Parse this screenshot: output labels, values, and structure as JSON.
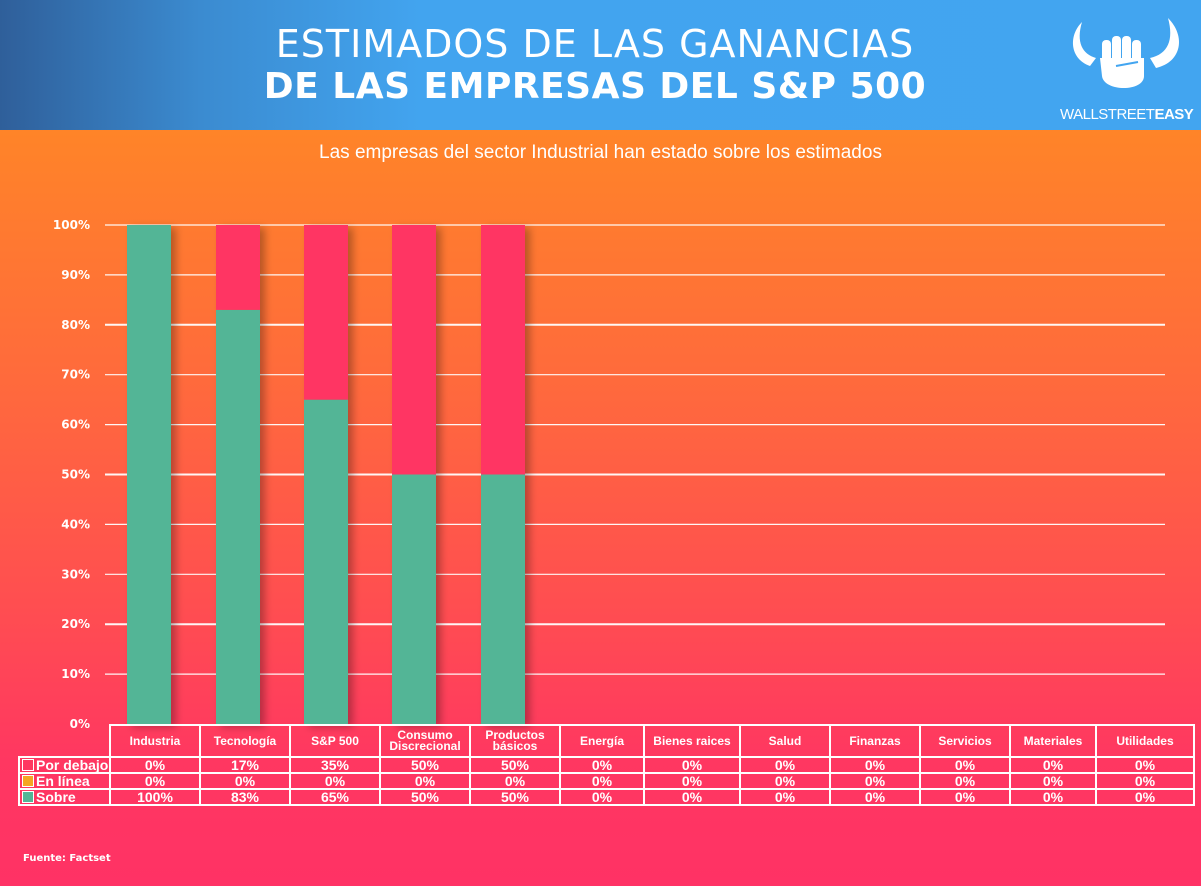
{
  "header": {
    "title_line1": "ESTIMADOS DE LAS GANANCIAS",
    "title_line2": "DE LAS EMPRESAS DEL S&P 500",
    "logo_icon": "bull-horns-fist-icon",
    "logo_text_light": "WALLSTREET",
    "logo_text_bold": "EASY"
  },
  "subtitle": "Las empresas del sector Industrial han estado sobre los estimados",
  "source": "Fuente: Factset",
  "colors": {
    "por_debajo": "#ff3464",
    "en_linea": "#f5a623",
    "sobre": "#52b596",
    "grid": "#ffffff"
  },
  "chart_data": {
    "type": "bar",
    "stacked": true,
    "title": "ESTIMADOS DE LAS GANANCIAS DE LAS EMPRESAS DEL S&P 500",
    "subtitle": "Las empresas del sector Industrial han estado sobre los estimados",
    "xlabel": "",
    "ylabel": "",
    "ylim": [
      0,
      100
    ],
    "yticks": [
      "0%",
      "10%",
      "20%",
      "30%",
      "40%",
      "50%",
      "60%",
      "70%",
      "80%",
      "90%",
      "100%"
    ],
    "grid": true,
    "legend": "table-bottom-left",
    "categories": [
      "Industria",
      "Tecnología",
      "S&P 500",
      "Consumo Discrecional",
      "Productos básicos",
      "Energía",
      "Bienes raices",
      "Salud",
      "Finanzas",
      "Servicios",
      "Materiales",
      "Utilidades"
    ],
    "category_lines": [
      [
        "Industria"
      ],
      [
        "Tecnología"
      ],
      [
        "S&P 500"
      ],
      [
        "Consumo",
        "Discrecional"
      ],
      [
        "Productos",
        "básicos"
      ],
      [
        "Energía"
      ],
      [
        "Bienes raices"
      ],
      [
        "Salud"
      ],
      [
        "Finanzas"
      ],
      [
        "Servicios"
      ],
      [
        "Materiales"
      ],
      [
        "Utilidades"
      ]
    ],
    "series": [
      {
        "name": "Por debajo",
        "color": "#ff3464",
        "values": [
          0,
          17,
          35,
          50,
          50,
          0,
          0,
          0,
          0,
          0,
          0,
          0
        ]
      },
      {
        "name": "En línea",
        "color": "#f5a623",
        "values": [
          0,
          0,
          0,
          0,
          0,
          0,
          0,
          0,
          0,
          0,
          0,
          0
        ]
      },
      {
        "name": "Sobre",
        "color": "#52b596",
        "values": [
          100,
          83,
          65,
          50,
          50,
          0,
          0,
          0,
          0,
          0,
          0,
          0
        ]
      }
    ],
    "table_rows": [
      {
        "name": "Por debajo",
        "cells": [
          "0%",
          "17%",
          "35%",
          "50%",
          "50%",
          "0%",
          "0%",
          "0%",
          "0%",
          "0%",
          "0%",
          "0%"
        ]
      },
      {
        "name": "En línea",
        "cells": [
          "0%",
          "0%",
          "0%",
          "0%",
          "0%",
          "0%",
          "0%",
          "0%",
          "0%",
          "0%",
          "0%",
          "0%"
        ]
      },
      {
        "name": "Sobre",
        "cells": [
          "100%",
          "83%",
          "65%",
          "50%",
          "50%",
          "0%",
          "0%",
          "0%",
          "0%",
          "0%",
          "0%",
          "0%"
        ]
      }
    ]
  }
}
